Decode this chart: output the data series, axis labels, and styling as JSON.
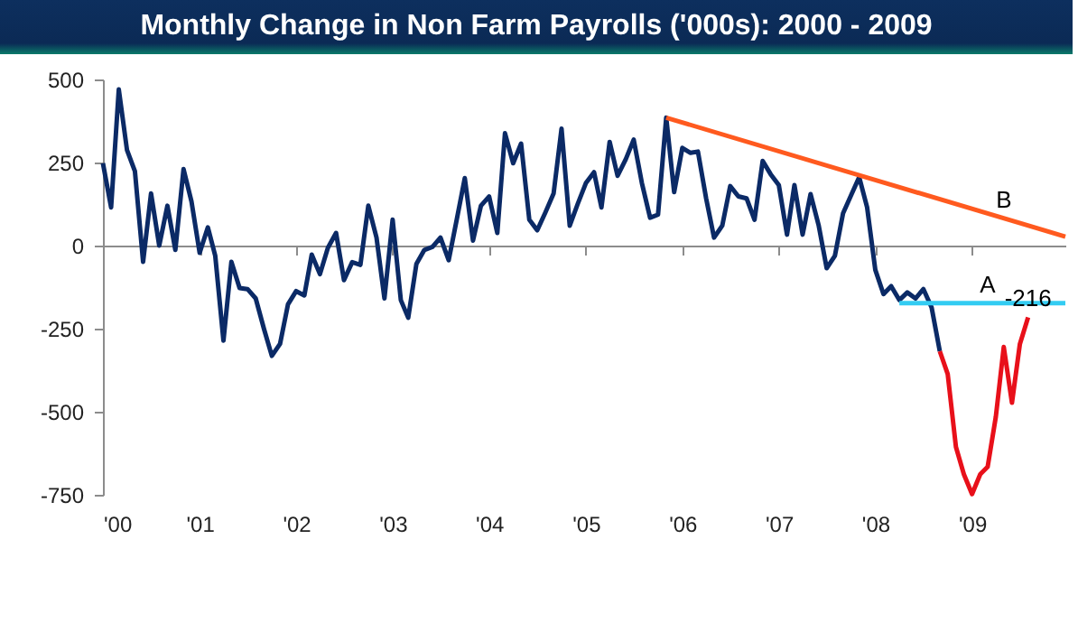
{
  "chart_data": {
    "type": "line",
    "title": "Monthly Change in Non Farm Payrolls ('000s): 2000 - 2009",
    "xlim": [
      "2000-01",
      "2009-12-20"
    ],
    "xticks": [
      {
        "value": "2000-01",
        "label": "'00"
      },
      {
        "value": "2001-01",
        "label": "'01"
      },
      {
        "value": "2002-01",
        "label": "'02"
      },
      {
        "value": "2003-01",
        "label": "'03"
      },
      {
        "value": "2004-01",
        "label": "'04"
      },
      {
        "value": "2005-01",
        "label": "'05"
      },
      {
        "value": "2006-01",
        "label": "'06"
      },
      {
        "value": "2007-01",
        "label": "'07"
      },
      {
        "value": "2008-01",
        "label": "'08"
      },
      {
        "value": "2009-01",
        "label": "'09"
      }
    ],
    "ylim": [
      -750,
      500
    ],
    "yticks": [
      -750,
      -500,
      -250,
      0,
      250,
      500
    ],
    "series": [
      {
        "color": "#0b2a66",
        "x": [
          "2000-01",
          "2000-02",
          "2000-03",
          "2000-04",
          "2000-05",
          "2000-06",
          "2000-07",
          "2000-08",
          "2000-09",
          "2000-10",
          "2000-11",
          "2000-12",
          "2001-01",
          "2001-02",
          "2001-03",
          "2001-04",
          "2001-05",
          "2001-06",
          "2001-07",
          "2001-08",
          "2001-09",
          "2001-10",
          "2001-11",
          "2001-12",
          "2002-01",
          "2002-02",
          "2002-03",
          "2002-04",
          "2002-05",
          "2002-06",
          "2002-07",
          "2002-08",
          "2002-09",
          "2002-10",
          "2002-11",
          "2002-12",
          "2003-01",
          "2003-02",
          "2003-03",
          "2003-04",
          "2003-05",
          "2003-06",
          "2003-07",
          "2003-08",
          "2003-09",
          "2003-10",
          "2003-11",
          "2003-12",
          "2004-01",
          "2004-02",
          "2004-03",
          "2004-04",
          "2004-05",
          "2004-06",
          "2004-07",
          "2004-08",
          "2004-09",
          "2004-10",
          "2004-11",
          "2004-12",
          "2005-01",
          "2005-02",
          "2005-03",
          "2005-04",
          "2005-05",
          "2005-06",
          "2005-07",
          "2005-08",
          "2005-09",
          "2005-10",
          "2005-11",
          "2005-12",
          "2006-01",
          "2006-02",
          "2006-03",
          "2006-04",
          "2006-05",
          "2006-06",
          "2006-07",
          "2006-08",
          "2006-09",
          "2006-10",
          "2006-11",
          "2006-12",
          "2007-01",
          "2007-02",
          "2007-03",
          "2007-04",
          "2007-05",
          "2007-06",
          "2007-07",
          "2007-08",
          "2007-09",
          "2007-10",
          "2007-11",
          "2007-12",
          "2008-01",
          "2008-02",
          "2008-03",
          "2008-04",
          "2008-05",
          "2008-06",
          "2008-07",
          "2008-08",
          "2008-09"
        ],
        "values": [
          248,
          115,
          470,
          288,
          224,
          -49,
          157,
          0,
          120,
          -13,
          230,
          133,
          -22,
          55,
          -31,
          -286,
          -49,
          -128,
          -131,
          -159,
          -250,
          -332,
          -296,
          -177,
          -137,
          -150,
          -27,
          -86,
          -7,
          38,
          -104,
          -50,
          -58,
          120,
          24,
          -159,
          78,
          -164,
          -217,
          -55,
          -13,
          -4,
          24,
          -44,
          80,
          203,
          15,
          120,
          148,
          38,
          338,
          248,
          307,
          78,
          46,
          100,
          157,
          352,
          60,
          125,
          188,
          221,
          115,
          312,
          210,
          260,
          319,
          188,
          84,
          93,
          385,
          161,
          294,
          279,
          283,
          142,
          24,
          60,
          179,
          148,
          142,
          78,
          255,
          215,
          182,
          33,
          182,
          33,
          155,
          60,
          -68,
          -31,
          97,
          151,
          206,
          115,
          -73,
          -146,
          -122,
          -164,
          -141,
          -159,
          -131,
          -186,
          -318
        ]
      },
      {
        "color": "#e8101a",
        "x": [
          "2008-09",
          "2008-10",
          "2008-11",
          "2008-12",
          "2009-01",
          "2009-02",
          "2009-03",
          "2009-04",
          "2009-05",
          "2009-06",
          "2009-07",
          "2009-08"
        ],
        "values": [
          -318,
          -387,
          -606,
          -688,
          -748,
          -688,
          -666,
          -515,
          -305,
          -473,
          -296,
          -216
        ]
      },
      {
        "color": "#ff5a1f",
        "x": [
          "2005-11",
          "2009-12-20"
        ],
        "values": [
          385,
          27
        ]
      },
      {
        "color": "#33ccf2",
        "x": [
          "2008-04",
          "2009-12-20"
        ],
        "values": [
          -173,
          -173
        ]
      }
    ],
    "annotations": [
      {
        "text": "A",
        "x": "2009-03",
        "y": -173
      },
      {
        "text": "-216",
        "x": "2009-08",
        "y": -216
      },
      {
        "text": "B",
        "x": "2009-05",
        "y": 82
      }
    ]
  }
}
